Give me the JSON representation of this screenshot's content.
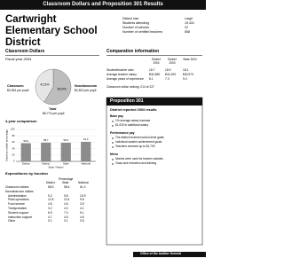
{
  "header": {
    "banner": "Classroom Dollars and Proposition 301 Results",
    "title": "Cartwright Elementary School District"
  },
  "district_info": [
    {
      "label": "District size",
      "value": "Large"
    },
    {
      "label": "Students attending",
      "value": "19,431"
    },
    {
      "label": "Number of schools",
      "value": "22"
    },
    {
      "label": "Number of certified teachers",
      "value": "858"
    }
  ],
  "classroom_dollars": {
    "heading": "Classroom Dollars",
    "subheading": "Fiscal year 2004",
    "pie": {
      "slices": [
        {
          "name": "Classroom",
          "amount": "$3,961 per pupil",
          "value": 58.5,
          "value_label": "58.5%",
          "color": "#bdbdbd"
        },
        {
          "name": "Nonclassroom",
          "amount": "$2,813 per pupil",
          "value": 41.5,
          "value_label": "41.5%",
          "color": "#e6e6e6"
        }
      ],
      "total_name": "Total",
      "total_amount": "$6,774 per pupil"
    }
  },
  "comparison": {
    "heading": "4-year comparison",
    "y_label": "Classroom dollar percentage",
    "x_label": "State / Nation",
    "categories": [
      "District",
      "District",
      "State",
      "National"
    ],
    "values": [
      56.9,
      58.7,
      58.4,
      61.3
    ],
    "color": "#8c8c8c",
    "ylim": [
      0,
      100
    ],
    "yticks": [
      0,
      20,
      40,
      60,
      80,
      100
    ]
  },
  "expenditures": {
    "heading": "Expenditures by function",
    "group_header": "Percentage",
    "columns": [
      "District",
      "State",
      "National"
    ],
    "rows": [
      [
        "Classroom dollars",
        "58.5",
        "58.4",
        "61.3"
      ],
      [
        "Nonclassroom dollars",
        "",
        "",
        ""
      ],
      [
        "Administration",
        "9.2",
        "9.8",
        "10.9"
      ],
      [
        "Plant operations",
        "12.6",
        "11.6",
        "9.6"
      ],
      [
        "Food service",
        "4.8",
        "4.6",
        "3.9"
      ],
      [
        "Transportation",
        "3.2",
        "4.0",
        "4.1"
      ],
      [
        "Student support",
        "6.9",
        "7.0",
        "5.1"
      ],
      [
        "Instruction support",
        "4.7",
        "4.5",
        "4.6"
      ],
      [
        "Other",
        "0.1",
        "0.1",
        "0.5"
      ]
    ]
  },
  "comparative": {
    "heading": "Comparative information",
    "columns": [
      "District 2004",
      "District 2003",
      "State 2004"
    ],
    "rows": [
      [
        "Student/teacher ratio",
        "18.7",
        "18.9",
        "18.1"
      ],
      [
        "Average teacher salary",
        "$42,385",
        "$41,093",
        "$40,973"
      ],
      [
        "Average years of experience",
        "8.1",
        "7.3",
        "9.4"
      ]
    ],
    "ranking": "Classroom dollar ranking: 214 of 227"
  },
  "proposition": {
    "heading": "Proposition 301",
    "subheading": "District reported 2004 results",
    "sections": [
      {
        "title": "Base pay",
        "items": [
          "1% average salary increase",
          "$1,000 in additional salary"
        ]
      },
      {
        "title": "Performance pay",
        "items": [
          "The district received school-level goals",
          "Individual student achievement goals",
          "Teachers received up to $1,700"
        ]
      },
      {
        "title": "Menu",
        "items": [
          "Monies were used for teacher salaries",
          "Class size reduction and training"
        ]
      }
    ]
  },
  "footer": "Office of the Auditor General"
}
